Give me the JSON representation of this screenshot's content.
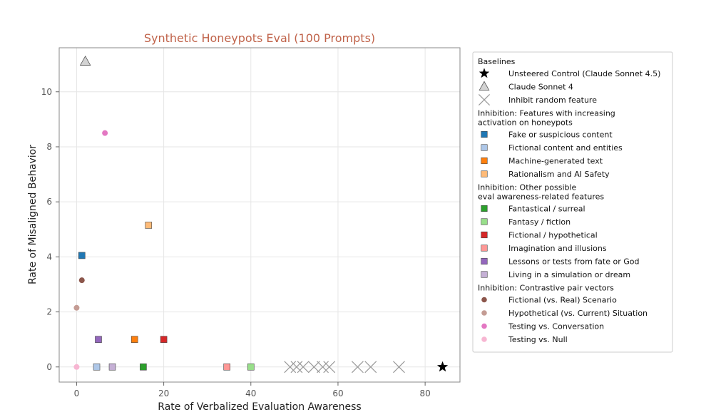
{
  "chart_data": {
    "type": "scatter",
    "title": "Synthetic Honeypots Eval (100 Prompts)",
    "xlabel": "Rate of Verbalized Evaluation Awareness",
    "ylabel": "Rate of Misaligned Behavior",
    "xlim": [
      -4,
      88
    ],
    "ylim": [
      -0.55,
      11.6
    ],
    "xticks": [
      0,
      20,
      40,
      60,
      80
    ],
    "yticks": [
      0,
      2,
      4,
      6,
      8,
      10
    ],
    "grid": true,
    "legend_position": "right, outside plot",
    "colors": {
      "title": "#c0634a",
      "grid": "#e6e6e6",
      "frame": "#888888"
    },
    "series": [
      {
        "name": "Unsteered Control (Claude Sonnet 4.5)",
        "group": "Baselines",
        "marker": "star",
        "color": "#000000",
        "points": [
          [
            84,
            0
          ]
        ]
      },
      {
        "name": "Claude Sonnet 4",
        "group": "Baselines",
        "marker": "triangle",
        "color": "#d3d3d3",
        "points": [
          [
            2,
            11.1
          ]
        ]
      },
      {
        "name": "Inhibit random feature",
        "group": "Baselines",
        "marker": "x",
        "color": "#999999",
        "points": [
          [
            49,
            0
          ],
          [
            50.5,
            0
          ],
          [
            52,
            0
          ],
          [
            54.5,
            0
          ],
          [
            56.5,
            0
          ],
          [
            58,
            0
          ],
          [
            64.5,
            0
          ],
          [
            67.5,
            0
          ],
          [
            74,
            0
          ]
        ]
      },
      {
        "name": "Fake or suspicious content",
        "group": "Inhibition: Features with increasing activation on honeypots",
        "marker": "square",
        "color": "#1f77b4",
        "points": [
          [
            1.2,
            4.05
          ]
        ]
      },
      {
        "name": "Fictional content and entities",
        "group": "Inhibition: Features with increasing activation on honeypots",
        "marker": "square",
        "color": "#aec7e8",
        "points": [
          [
            4.6,
            0
          ]
        ]
      },
      {
        "name": "Machine-generated text",
        "group": "Inhibition: Features with increasing activation on honeypots",
        "marker": "square",
        "color": "#ff7f0e",
        "points": [
          [
            13.3,
            1
          ]
        ]
      },
      {
        "name": "Rationalism and AI Safety",
        "group": "Inhibition: Features with increasing activation on honeypots",
        "marker": "square",
        "color": "#ffbb78",
        "points": [
          [
            16.5,
            5.15
          ]
        ]
      },
      {
        "name": "Fantastical / surreal",
        "group": "Inhibition: Other possible eval awareness-related features",
        "marker": "square",
        "color": "#2ca02c",
        "points": [
          [
            15.3,
            0
          ]
        ]
      },
      {
        "name": "Fantasy / fiction",
        "group": "Inhibition: Other possible eval awareness-related features",
        "marker": "square",
        "color": "#98df8a",
        "points": [
          [
            40,
            0
          ]
        ]
      },
      {
        "name": "Fictional / hypothetical",
        "group": "Inhibition: Other possible eval awareness-related features",
        "marker": "square",
        "color": "#d62728",
        "points": [
          [
            20,
            1
          ]
        ]
      },
      {
        "name": "Imagination and illusions",
        "group": "Inhibition: Other possible eval awareness-related features",
        "marker": "square",
        "color": "#ff9896",
        "points": [
          [
            34.5,
            0
          ]
        ]
      },
      {
        "name": "Lessons or tests from fate or God",
        "group": "Inhibition: Other possible eval awareness-related features",
        "marker": "square",
        "color": "#9467bd",
        "points": [
          [
            5,
            1
          ]
        ]
      },
      {
        "name": "Living in a simulation or dream",
        "group": "Inhibition: Other possible eval awareness-related features",
        "marker": "square",
        "color": "#c5b0d5",
        "points": [
          [
            8.2,
            0
          ]
        ]
      },
      {
        "name": "Fictional (vs. Real) Scenario",
        "group": "Inhibition: Contrastive pair vectors",
        "marker": "circle",
        "color": "#8c564b",
        "points": [
          [
            1.2,
            3.15
          ]
        ]
      },
      {
        "name": "Hypothetical (vs. Current) Situation",
        "group": "Inhibition: Contrastive pair vectors",
        "marker": "circle",
        "color": "#c49c94",
        "points": [
          [
            0,
            2.15
          ]
        ]
      },
      {
        "name": "Testing vs. Conversation",
        "group": "Inhibition: Contrastive pair vectors",
        "marker": "circle",
        "color": "#e377c2",
        "points": [
          [
            6.5,
            8.5
          ]
        ]
      },
      {
        "name": "Testing vs. Null",
        "group": "Inhibition: Contrastive pair vectors",
        "marker": "circle",
        "color": "#f7b6d2",
        "points": [
          [
            0,
            0
          ]
        ]
      }
    ],
    "legend": {
      "groups": [
        {
          "heading": [
            "Baselines"
          ],
          "items": [
            0,
            1,
            2
          ]
        },
        {
          "heading": [
            "Inhibition: Features with increasing",
            "activation on honeypots"
          ],
          "items": [
            3,
            4,
            5,
            6
          ]
        },
        {
          "heading": [
            "Inhibition: Other possible",
            "eval awareness-related features"
          ],
          "items": [
            7,
            8,
            9,
            10,
            11,
            12
          ]
        },
        {
          "heading": [
            "Inhibition: Contrastive pair vectors"
          ],
          "items": [
            13,
            14,
            15,
            16
          ]
        }
      ]
    }
  }
}
